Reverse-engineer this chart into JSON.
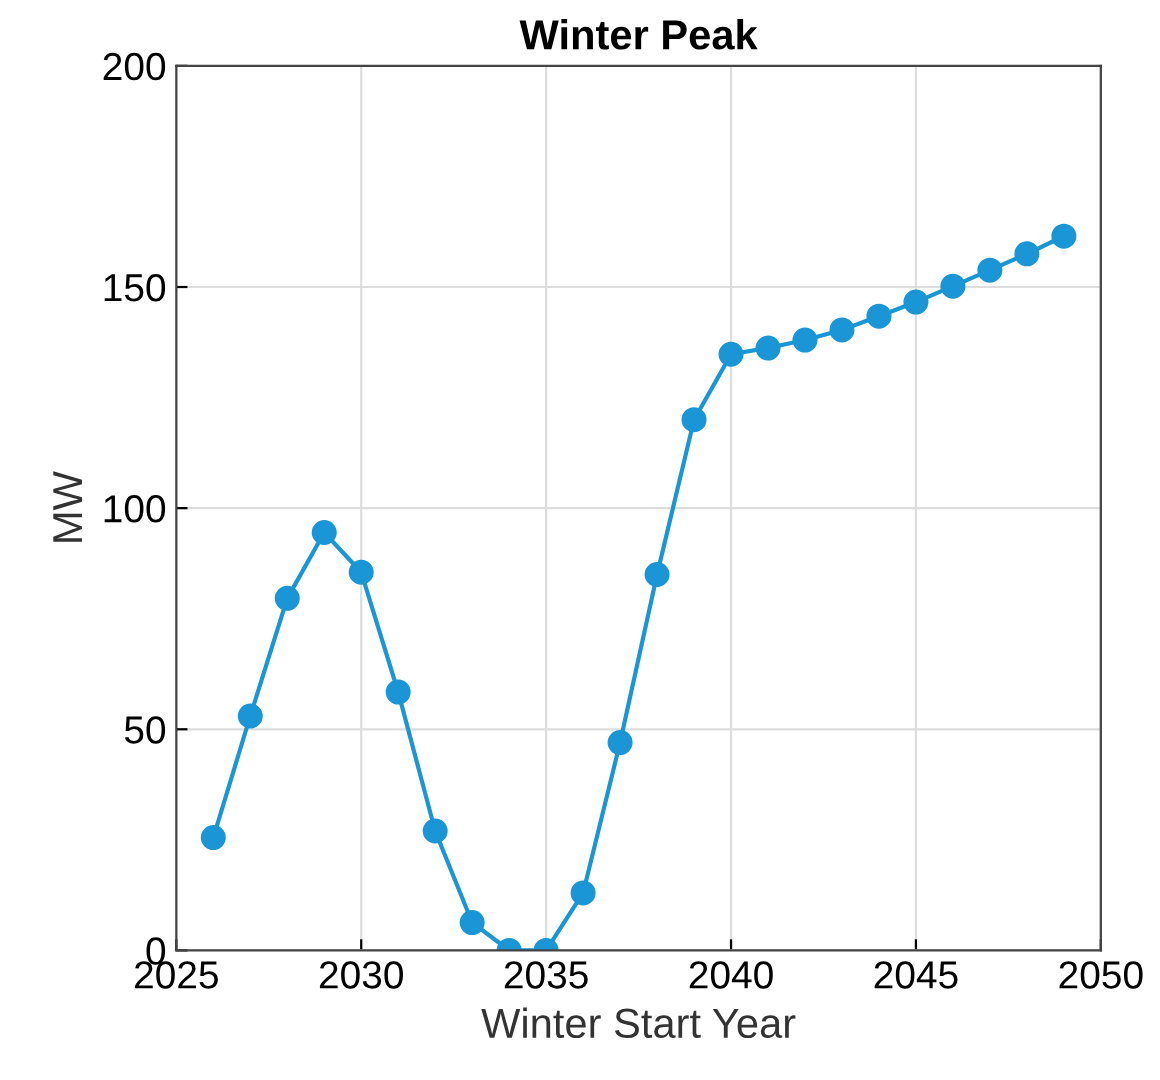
{
  "chart_data": {
    "type": "line",
    "title": "Winter Peak",
    "xlabel": "Winter Start Year",
    "ylabel": "MW",
    "x": [
      2026,
      2027,
      2028,
      2029,
      2030,
      2031,
      2032,
      2033,
      2034,
      2035,
      2036,
      2037,
      2038,
      2039,
      2040,
      2041,
      2042,
      2043,
      2044,
      2045,
      2046,
      2047,
      2048,
      2049
    ],
    "series": [
      {
        "color": "#1a95d6",
        "values": [
          25.5,
          53,
          79.6,
          94.5,
          85.5,
          58.4,
          27,
          6.3,
          0,
          0,
          13,
          47,
          85,
          120,
          134.8,
          136.2,
          138,
          140.3,
          143.4,
          146.6,
          150.2,
          153.8,
          157.5,
          161.5
        ]
      }
    ],
    "xlim": [
      2025,
      2050
    ],
    "xticks": [
      2025,
      2030,
      2035,
      2040,
      2045,
      2050
    ],
    "ylim": [
      0,
      200
    ],
    "yticks": [
      0,
      50,
      100,
      150,
      200
    ],
    "grid": true,
    "marker": "circle",
    "line_style": "solid"
  }
}
